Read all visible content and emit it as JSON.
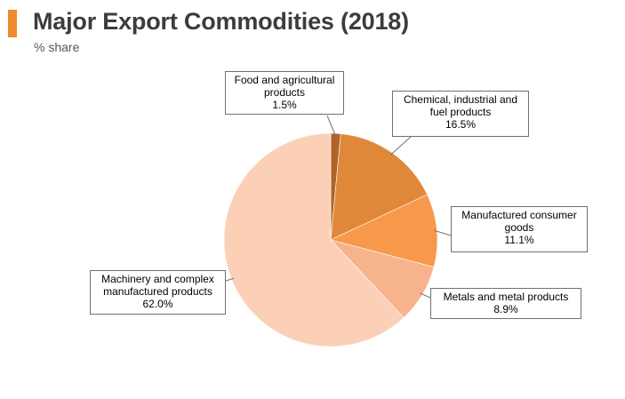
{
  "header": {
    "title": "Major Export Commodities (2018)",
    "subtitle": "% share",
    "accent_color": "#f08a30"
  },
  "chart_data": {
    "type": "pie",
    "unit": "% share",
    "slices": [
      {
        "label": "Food and agricultural products",
        "value": 1.5,
        "value_label": "1.5%",
        "color": "#b0642a"
      },
      {
        "label": "Chemical, industrial and fuel products",
        "value": 16.5,
        "value_label": "16.5%",
        "color": "#e0883a"
      },
      {
        "label": "Manufactured consumer goods",
        "value": 11.1,
        "value_label": "11.1%",
        "color": "#f7984a"
      },
      {
        "label": "Metals and metal products",
        "value": 8.9,
        "value_label": "8.9%",
        "color": "#f7b48c"
      },
      {
        "label": "Machinery and complex manufactured products",
        "value": 62.0,
        "value_label": "62.0%",
        "color": "#fbd0b7"
      }
    ],
    "start_angle": "12 o'clock",
    "direction": "clockwise",
    "legend": "none (callout labels)"
  }
}
